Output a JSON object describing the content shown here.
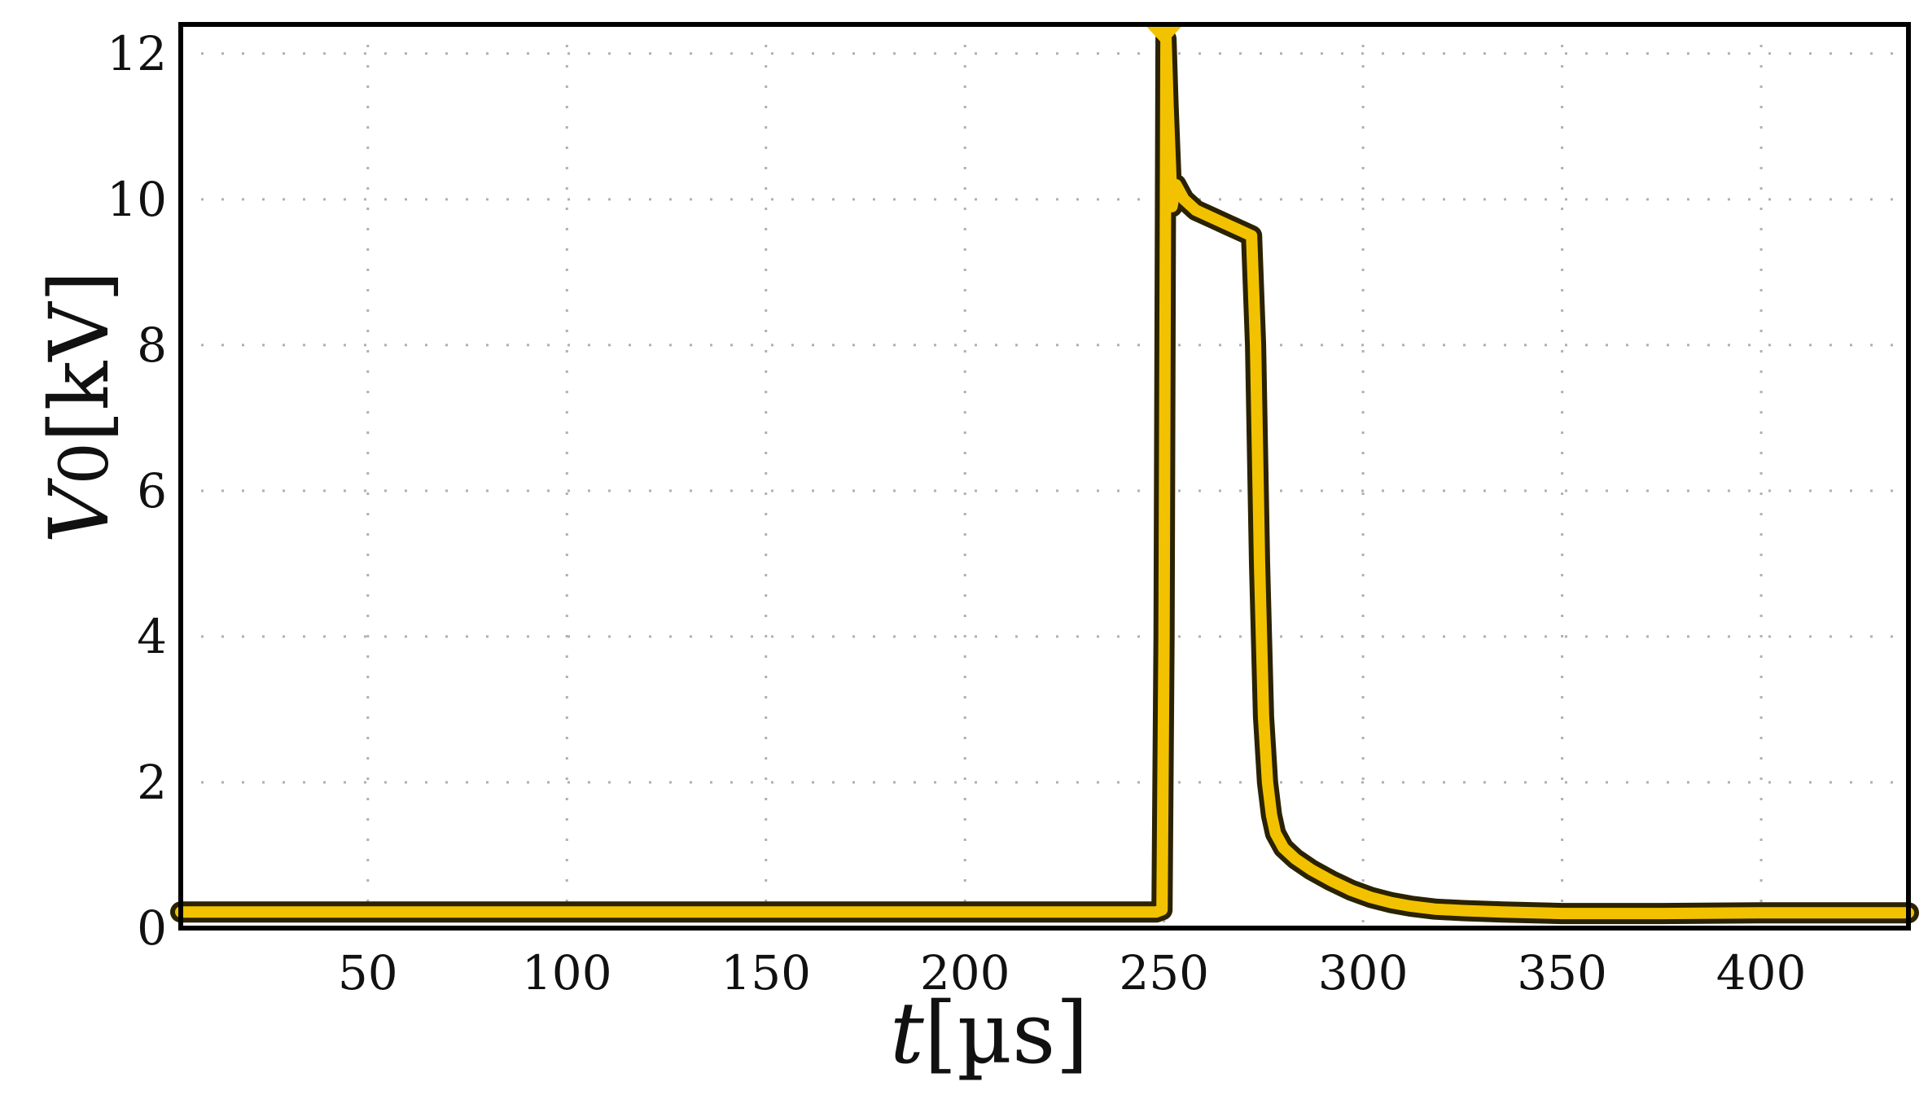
{
  "chart_data": {
    "type": "line",
    "title": "",
    "xlabel_var": "t",
    "xlabel_unit": "[µs]",
    "ylabel_var": "V",
    "ylabel_sub": "0",
    "ylabel_unit": "[kV]",
    "xlim": [
      3,
      437
    ],
    "ylim": [
      0,
      12.4
    ],
    "xticks": [
      50,
      100,
      150,
      200,
      250,
      300,
      350,
      400
    ],
    "yticks": [
      0,
      2,
      4,
      6,
      8,
      10,
      12
    ],
    "grid": "dotted",
    "trigger_marker_x": 250,
    "colors": {
      "trace": "#f2c200",
      "trace_edge": "#2a2200",
      "frame": "#000000",
      "grid": "#b0b0b0"
    },
    "series": [
      {
        "x": [
          3,
          50,
          100,
          150,
          200,
          248,
          249.5,
          250,
          250.5,
          251,
          252,
          253,
          255,
          258,
          262,
          266,
          270,
          272,
          273,
          274,
          275,
          276,
          277,
          278,
          280,
          283,
          287,
          292,
          297,
          302,
          307,
          312,
          318,
          325,
          335,
          350,
          375,
          400,
          437
        ],
        "y": [
          0.22,
          0.22,
          0.22,
          0.22,
          0.22,
          0.22,
          0.25,
          4.0,
          12.2,
          11.3,
          9.9,
          10.2,
          10.0,
          9.85,
          9.75,
          9.65,
          9.55,
          9.5,
          8.0,
          5.0,
          2.9,
          2.0,
          1.55,
          1.3,
          1.1,
          0.95,
          0.8,
          0.65,
          0.52,
          0.42,
          0.35,
          0.3,
          0.26,
          0.24,
          0.22,
          0.2,
          0.2,
          0.21,
          0.21
        ]
      }
    ]
  }
}
